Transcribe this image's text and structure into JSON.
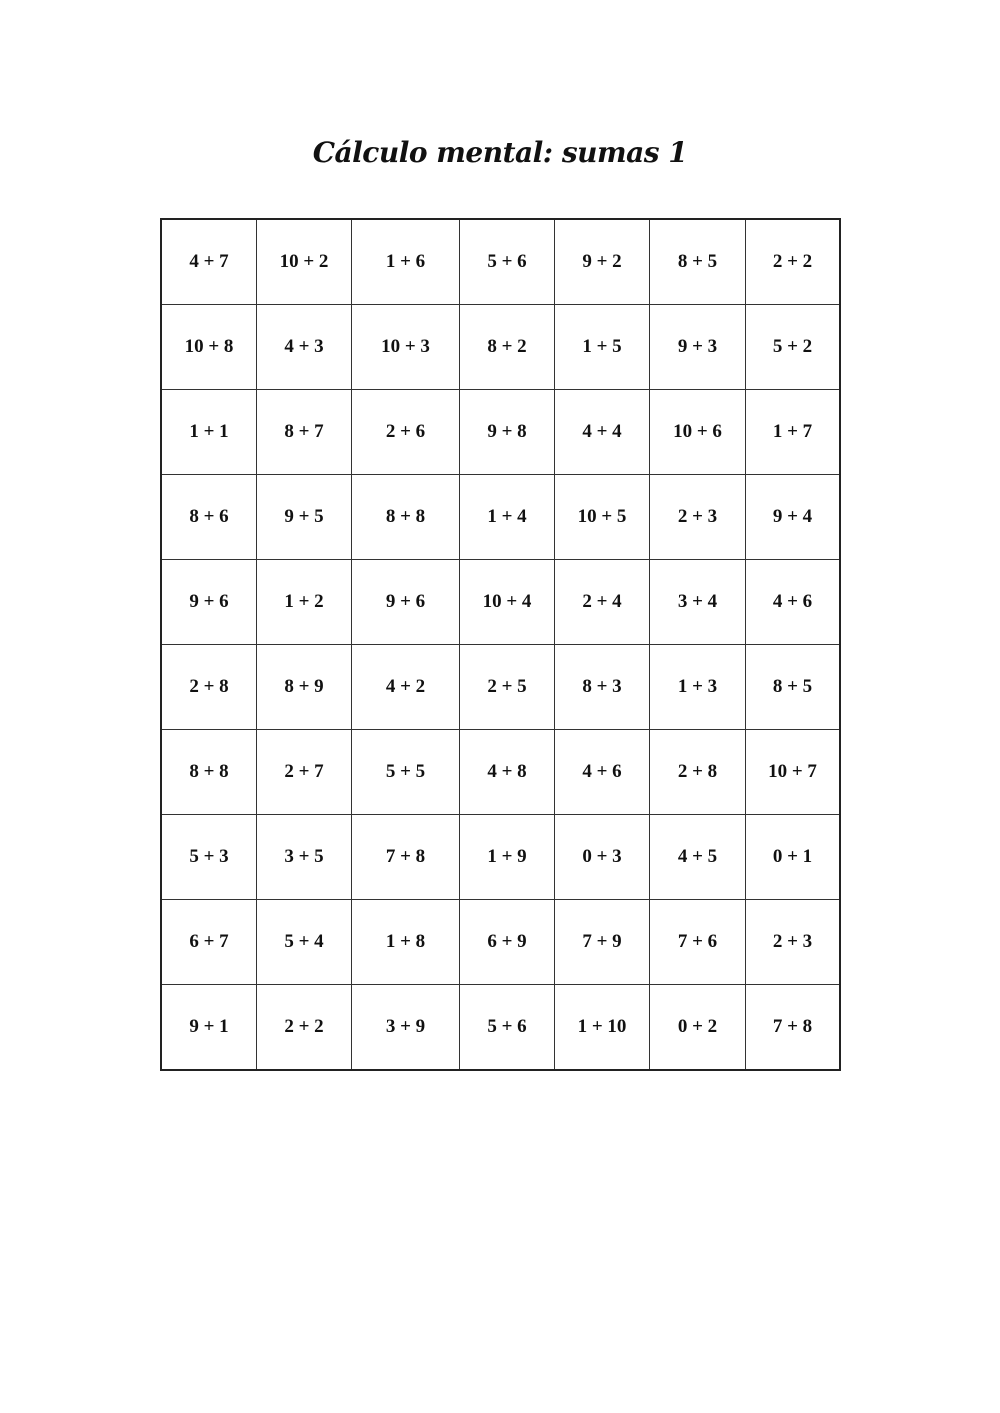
{
  "title": "Cálculo mental: sumas 1",
  "grid": [
    [
      "4 + 7",
      "10 + 2",
      "1 + 6",
      "5 + 6",
      "9 + 2",
      "8 + 5",
      "2 + 2"
    ],
    [
      "10 + 8",
      "4 + 3",
      "10 + 3",
      "8 + 2",
      "1 + 5",
      "9 + 3",
      "5 + 2"
    ],
    [
      "1 + 1",
      "8 + 7",
      "2 + 6",
      "9 + 8",
      "4 + 4",
      "10 + 6",
      "1 + 7"
    ],
    [
      "8 + 6",
      "9 + 5",
      "8 + 8",
      "1 + 4",
      "10 + 5",
      "2 + 3",
      "9 + 4"
    ],
    [
      "9 + 6",
      "1 + 2",
      "9 + 6",
      "10 + 4",
      "2 + 4",
      "3 + 4",
      "4 + 6"
    ],
    [
      "2 + 8",
      "8 + 9",
      "4 + 2",
      "2 + 5",
      "8 + 3",
      "1 + 3",
      "8 + 5"
    ],
    [
      "8 + 8",
      "2 + 7",
      "5 + 5",
      "4 + 8",
      "4 + 6",
      "2 + 8",
      "10 + 7"
    ],
    [
      "5 + 3",
      "3 + 5",
      "7 + 8",
      "1 + 9",
      "0 + 3",
      "4 + 5",
      "0 + 1"
    ],
    [
      "6 + 7",
      "5 + 4",
      "1 + 8",
      "6 + 9",
      "7 + 9",
      "7 + 6",
      "2 + 3"
    ],
    [
      "9 + 1",
      "2 + 2",
      "3 + 9",
      "5 + 6",
      "1 + 10",
      "0 + 2",
      "7 + 8"
    ]
  ]
}
